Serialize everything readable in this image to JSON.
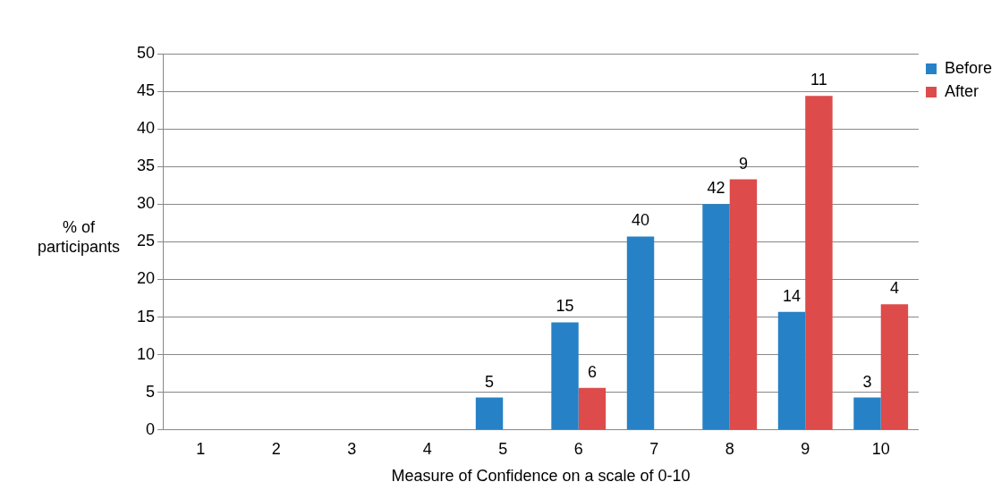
{
  "chart_data": {
    "type": "bar",
    "xlabel": "Measure of Confidence on a scale of 0-10",
    "ylabel": "% of participants",
    "categories": [
      "1",
      "2",
      "3",
      "4",
      "5",
      "6",
      "7",
      "8",
      "9",
      "10"
    ],
    "series": [
      {
        "name": "Before",
        "color": "#2681c6",
        "values": [
          0,
          0,
          0,
          0,
          4.3,
          14.3,
          25.7,
          30,
          15.7,
          4.3
        ]
      },
      {
        "name": "After",
        "color": "#dd4b4b",
        "values": [
          0,
          0,
          0,
          0,
          0,
          5.6,
          0,
          33.3,
          44.4,
          16.7
        ]
      }
    ],
    "annotations": [
      {
        "text": "5",
        "x": "5",
        "y": 4.3
      },
      {
        "text": "15",
        "x": "6",
        "y": 14.3
      },
      {
        "text": "6",
        "x": "6",
        "y": 5.6
      },
      {
        "text": "40",
        "x": "7",
        "y": 25.7
      },
      {
        "text": "42",
        "x": "8",
        "y": 30
      },
      {
        "text": "9",
        "x": "8",
        "y": 33.3
      },
      {
        "text": "14",
        "x": "9",
        "y": 15.7
      },
      {
        "text": "11",
        "x": "9",
        "y": 44.4
      },
      {
        "text": "3",
        "x": "10",
        "y": 4.3
      },
      {
        "text": "4",
        "x": "10",
        "y": 16.7
      }
    ],
    "ylim": [
      0,
      50
    ],
    "yticks": [
      0,
      5,
      10,
      15,
      20,
      25,
      30,
      35,
      40,
      45,
      50
    ],
    "grid": "y",
    "legend": "right"
  }
}
